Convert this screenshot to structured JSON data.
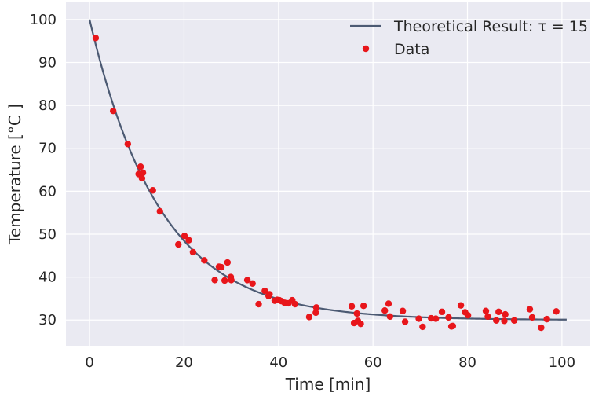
{
  "chart_data": {
    "type": "scatter",
    "title": "",
    "xlabel": "Time [min]",
    "ylabel": "Temperature [°C ]",
    "xlim": [
      -5,
      106
    ],
    "ylim": [
      24,
      104
    ],
    "xticks": [
      "0",
      "20",
      "40",
      "60",
      "80",
      "100"
    ],
    "yticks": [
      "30",
      "40",
      "50",
      "60",
      "70",
      "80",
      "90",
      "100"
    ],
    "grid": true,
    "legend_position": "top-right",
    "colors": {
      "background": "#eaeaf2",
      "grid": "#ffffff",
      "line": "#4c5a73",
      "points": "#e8161b"
    },
    "series": [
      {
        "name": "Theoretical Result: τ = 15",
        "kind": "line",
        "model": {
          "t_ambient": 30,
          "t_initial": 100,
          "tau": 15
        },
        "x": [
          0,
          101
        ]
      },
      {
        "name": "Data",
        "kind": "scatter",
        "points": [
          [
            1.3,
            95.7
          ],
          [
            5.0,
            78.7
          ],
          [
            8.1,
            71.0
          ],
          [
            10.4,
            64.0
          ],
          [
            10.8,
            65.7
          ],
          [
            11.1,
            63.0
          ],
          [
            11.3,
            64.3
          ],
          [
            13.4,
            60.2
          ],
          [
            14.9,
            55.3
          ],
          [
            18.8,
            47.6
          ],
          [
            20.1,
            49.6
          ],
          [
            21.0,
            48.6
          ],
          [
            21.9,
            45.8
          ],
          [
            24.3,
            43.9
          ],
          [
            26.5,
            39.3
          ],
          [
            27.4,
            42.4
          ],
          [
            27.9,
            42.3
          ],
          [
            28.6,
            39.2
          ],
          [
            29.2,
            43.4
          ],
          [
            29.9,
            40.0
          ],
          [
            30.0,
            39.3
          ],
          [
            33.4,
            39.3
          ],
          [
            34.5,
            38.5
          ],
          [
            35.8,
            33.7
          ],
          [
            37.1,
            36.8
          ],
          [
            37.9,
            35.6
          ],
          [
            38.1,
            36.0
          ],
          [
            39.2,
            34.5
          ],
          [
            39.7,
            34.7
          ],
          [
            40.2,
            34.6
          ],
          [
            40.6,
            34.4
          ],
          [
            41.3,
            34.0
          ],
          [
            42.1,
            33.9
          ],
          [
            42.9,
            34.6
          ],
          [
            43.5,
            33.7
          ],
          [
            46.5,
            30.7
          ],
          [
            47.9,
            31.7
          ],
          [
            48.0,
            32.9
          ],
          [
            55.5,
            33.2
          ],
          [
            56.0,
            29.3
          ],
          [
            56.6,
            31.5
          ],
          [
            56.8,
            29.8
          ],
          [
            57.4,
            29.1
          ],
          [
            58.0,
            33.3
          ],
          [
            62.5,
            32.2
          ],
          [
            63.3,
            33.8
          ],
          [
            63.6,
            30.8
          ],
          [
            66.3,
            32.1
          ],
          [
            66.8,
            29.6
          ],
          [
            69.7,
            30.3
          ],
          [
            70.5,
            28.4
          ],
          [
            72.3,
            30.4
          ],
          [
            73.3,
            30.3
          ],
          [
            74.6,
            31.9
          ],
          [
            76.0,
            30.6
          ],
          [
            76.6,
            28.5
          ],
          [
            76.9,
            28.6
          ],
          [
            78.6,
            33.4
          ],
          [
            79.5,
            31.8
          ],
          [
            80.1,
            31.1
          ],
          [
            83.9,
            32.1
          ],
          [
            84.3,
            30.8
          ],
          [
            86.1,
            29.9
          ],
          [
            86.6,
            31.9
          ],
          [
            87.8,
            29.8
          ],
          [
            88.0,
            31.3
          ],
          [
            89.9,
            29.9
          ],
          [
            93.2,
            32.5
          ],
          [
            93.7,
            30.6
          ],
          [
            95.6,
            28.2
          ],
          [
            96.8,
            30.2
          ],
          [
            98.8,
            32.0
          ]
        ]
      }
    ]
  }
}
